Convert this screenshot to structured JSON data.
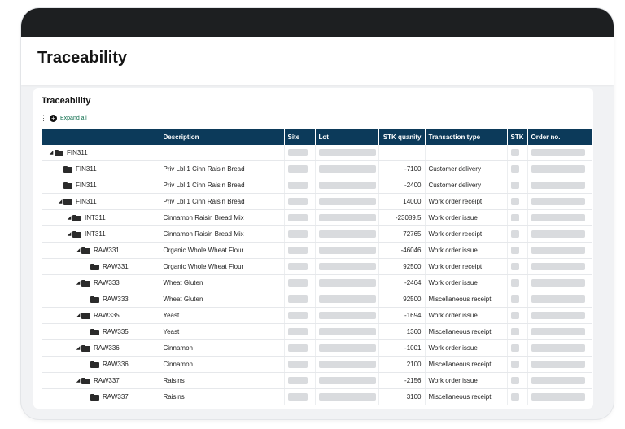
{
  "header": {
    "title": "Traceability"
  },
  "section": {
    "title": "Traceability",
    "expand_all": "Expand all"
  },
  "table": {
    "columns": {
      "description": "Description",
      "site": "Site",
      "lot": "Lot",
      "qty": "STK quanity",
      "ttype": "Transaction type",
      "stk": "STK",
      "order": "Order no."
    },
    "rows": [
      {
        "item": "FIN311",
        "level": 0,
        "expandable": true,
        "desc": "",
        "qty": "",
        "ttype": ""
      },
      {
        "item": "FIN311",
        "level": 1,
        "expandable": false,
        "desc": "Priv Lbl 1 Cinn Raisin Bread",
        "qty": "-7100",
        "ttype": "Customer delivery"
      },
      {
        "item": "FIN311",
        "level": 1,
        "expandable": false,
        "desc": "Priv Lbl 1 Cinn Raisin Bread",
        "qty": "-2400",
        "ttype": "Customer delivery"
      },
      {
        "item": "FIN311",
        "level": 1,
        "expandable": true,
        "desc": "Priv Lbl 1 Cinn Raisin Bread",
        "qty": "14000",
        "ttype": "Work order receipt"
      },
      {
        "item": "INT311",
        "level": 2,
        "expandable": true,
        "desc": "Cinnamon Raisin Bread Mix",
        "qty": "-23089.5",
        "ttype": "Work order issue"
      },
      {
        "item": "INT311",
        "level": 2,
        "expandable": true,
        "desc": "Cinnamon Raisin Bread Mix",
        "qty": "72765",
        "ttype": "Work order receipt"
      },
      {
        "item": "RAW331",
        "level": 3,
        "expandable": true,
        "desc": "Organic Whole Wheat Flour",
        "qty": "-46046",
        "ttype": "Work order issue"
      },
      {
        "item": "RAW331",
        "level": 4,
        "expandable": false,
        "desc": "Organic Whole Wheat Flour",
        "qty": "92500",
        "ttype": "Work order receipt"
      },
      {
        "item": "RAW333",
        "level": 3,
        "expandable": true,
        "desc": "Wheat Gluten",
        "qty": "-2464",
        "ttype": "Work order issue"
      },
      {
        "item": "RAW333",
        "level": 4,
        "expandable": false,
        "desc": "Wheat Gluten",
        "qty": "92500",
        "ttype": "Miscellaneous receipt"
      },
      {
        "item": "RAW335",
        "level": 3,
        "expandable": true,
        "desc": "Yeast",
        "qty": "-1694",
        "ttype": "Work order issue"
      },
      {
        "item": "RAW335",
        "level": 4,
        "expandable": false,
        "desc": "Yeast",
        "qty": "1360",
        "ttype": "Miscellaneous receipt"
      },
      {
        "item": "RAW336",
        "level": 3,
        "expandable": true,
        "desc": "Cinnamon",
        "qty": "-1001",
        "ttype": "Work order issue"
      },
      {
        "item": "RAW336",
        "level": 4,
        "expandable": false,
        "desc": "Cinnamon",
        "qty": "2100",
        "ttype": "Miscellaneous receipt"
      },
      {
        "item": "RAW337",
        "level": 3,
        "expandable": true,
        "desc": "Raisins",
        "qty": "-2156",
        "ttype": "Work order issue"
      },
      {
        "item": "RAW337",
        "level": 4,
        "expandable": false,
        "desc": "Raisins",
        "qty": "3100",
        "ttype": "Miscellaneous receipt"
      }
    ]
  },
  "icons": {
    "expand": "expand-all-icon",
    "folder": "folder-icon",
    "caret": "caret-down-icon",
    "menu": "kebab-menu-icon"
  },
  "colors": {
    "header_bg": "#0c3a5a",
    "topbar": "#1d1f21",
    "link": "#0a6b4a",
    "placeholder": "#d9dbde"
  }
}
